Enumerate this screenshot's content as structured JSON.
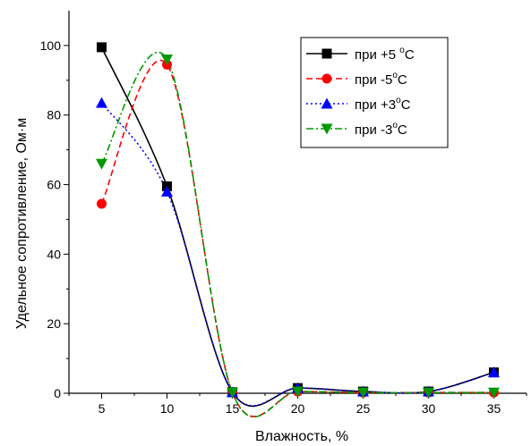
{
  "chart_data": {
    "type": "line",
    "title": "",
    "xlabel": "Влажность, %",
    "ylabel": "Удельное сопротивление, Ом·м",
    "x_ticks": [
      5,
      10,
      15,
      20,
      25,
      30,
      35
    ],
    "y_ticks": [
      0,
      20,
      40,
      60,
      80,
      100
    ],
    "xlim": [
      2.5,
      37.5
    ],
    "ylim": [
      0,
      110
    ],
    "grid": false,
    "legend_position": "top-right",
    "x": [
      5,
      10,
      15,
      20,
      25,
      30,
      35
    ],
    "series": [
      {
        "name": "при +5 °C",
        "name_parts": [
          "при +5 ",
          "o",
          "C"
        ],
        "marker": "square",
        "color": "#000000",
        "dash": "solid",
        "values": [
          99.5,
          59.5,
          0.3,
          1.5,
          0.5,
          0.5,
          6.0
        ]
      },
      {
        "name": "при -5°C",
        "name_parts": [
          "при -5",
          "o",
          "C"
        ],
        "marker": "circle",
        "color": "#ff0000",
        "dash": "dash",
        "values": [
          54.5,
          94.5,
          0.2,
          0.5,
          0.2,
          0.2,
          0.2
        ]
      },
      {
        "name": "при +3°C",
        "name_parts": [
          "при +3",
          "o",
          "C"
        ],
        "marker": "triangle-up",
        "color": "#0000ff",
        "dash": "dot",
        "values": [
          83.5,
          58.0,
          0.3,
          1.5,
          0.5,
          0.5,
          6.0
        ]
      },
      {
        "name": "при -3°C",
        "name_parts": [
          "при -3",
          "o",
          "C"
        ],
        "marker": "triangle-down",
        "color": "#009900",
        "dash": "dashdot",
        "values": [
          66.0,
          96.0,
          0.2,
          0.5,
          0.2,
          0.2,
          0.2
        ]
      }
    ]
  }
}
